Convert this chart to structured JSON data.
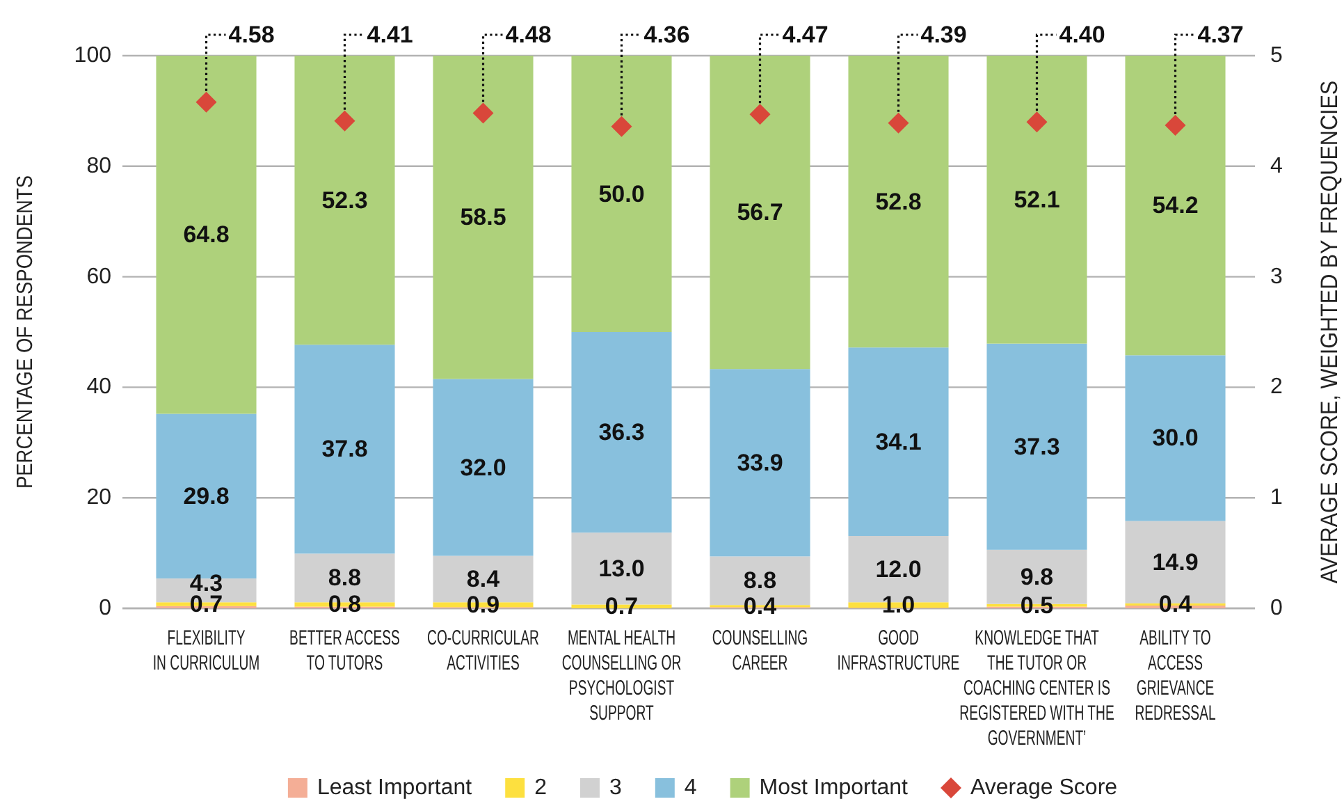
{
  "chart_data": {
    "type": "bar",
    "stacked": true,
    "categories": [
      "FLEXIBILITY\nIN CURRICULUM",
      "BETTER ACCESS\nTO TUTORS",
      "CO-CURRICULAR\nACTIVITIES",
      "MENTAL HEALTH\nCOUNSELLING OR\nPSYCHOLOGIST\nSUPPORT",
      "COUNSELLING\nCAREER",
      "GOOD\nINFRASTRUCTURE",
      "KNOWLEDGE THAT\nTHE TUTOR OR\nCOACHING CENTER IS\nREGISTERED WITH THE\nGOVERNMENT’",
      "ABILITY TO\nACCESS\nGRIEVANCE\nREDRESSAL"
    ],
    "ylabel": "PERCENTAGE OF RESPONDENTS",
    "y2label": "AVERAGE SCORE, WEIGHTED BY FREQUENCIES",
    "ylim": [
      0,
      100
    ],
    "yticks": [
      0,
      20,
      40,
      60,
      80,
      100
    ],
    "y2lim": [
      0,
      5
    ],
    "y2ticks": [
      0,
      1,
      2,
      3,
      4,
      5
    ],
    "grid": "y",
    "legend": "bottom",
    "series": [
      {
        "name": "Least Important",
        "color": "#f4ae96",
        "values": [
          0.4,
          0.3,
          0.2,
          0.0,
          0.2,
          0.1,
          0.3,
          0.5
        ]
      },
      {
        "name": "2",
        "color": "#fde03f",
        "values": [
          0.7,
          0.8,
          0.9,
          0.7,
          0.4,
          1.0,
          0.5,
          0.4
        ],
        "value_labels": [
          "0.7",
          "0.8",
          "0.9",
          "0.7",
          "0.4",
          "1.0",
          "0.5",
          "0.4"
        ]
      },
      {
        "name": "3",
        "color": "#d1d1d1",
        "values": [
          4.3,
          8.8,
          8.4,
          13.0,
          8.8,
          12.0,
          9.8,
          14.9
        ],
        "value_labels": [
          "4.3",
          "8.8",
          "8.4",
          "13.0",
          "8.8",
          "12.0",
          "9.8",
          "14.9"
        ]
      },
      {
        "name": "4",
        "color": "#88c0dd",
        "values": [
          29.8,
          37.8,
          32.0,
          36.3,
          33.9,
          34.1,
          37.3,
          30.0
        ],
        "value_labels": [
          "29.8",
          "37.8",
          "32.0",
          "36.3",
          "33.9",
          "34.1",
          "37.3",
          "30.0"
        ]
      },
      {
        "name": "Most Important",
        "color": "#aed17b",
        "values": [
          64.8,
          52.3,
          58.5,
          50.0,
          56.7,
          52.8,
          52.1,
          54.2
        ],
        "value_labels": [
          "64.8",
          "52.3",
          "58.5",
          "50.0",
          "56.7",
          "52.8",
          "52.1",
          "54.2"
        ]
      },
      {
        "name": "Average Score",
        "type": "scatter",
        "axis": "y2",
        "marker": "diamond",
        "color": "#d9473a",
        "values": [
          4.58,
          4.41,
          4.48,
          4.36,
          4.47,
          4.39,
          4.4,
          4.37
        ],
        "value_labels": [
          "4.58",
          "4.41",
          "4.48",
          "4.36",
          "4.47",
          "4.39",
          "4.40",
          "4.37"
        ]
      }
    ]
  }
}
